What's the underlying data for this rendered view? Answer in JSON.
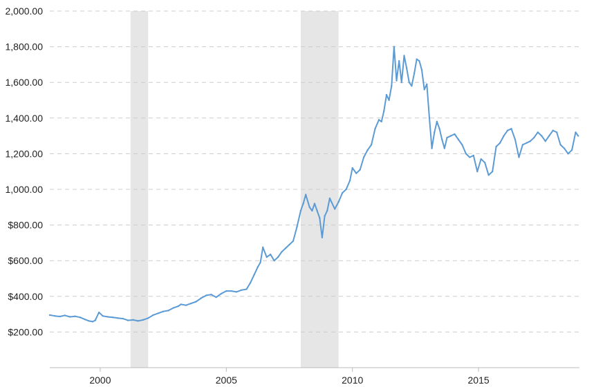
{
  "chart_data": {
    "type": "line",
    "title": "",
    "xlabel": "",
    "ylabel": "",
    "xlim": [
      1998.0,
      2019.0
    ],
    "ylim": [
      0,
      2000
    ],
    "grid": "horizontal dashed",
    "y_ticks": [
      {
        "value": 200,
        "label": "$200.00"
      },
      {
        "value": 400,
        "label": "$400.00"
      },
      {
        "value": 600,
        "label": "$600.00"
      },
      {
        "value": 800,
        "label": "$800.00"
      },
      {
        "value": 1000,
        "label": "1,000.00"
      },
      {
        "value": 1200,
        "label": "1,200.00"
      },
      {
        "value": 1400,
        "label": "1,400.00"
      },
      {
        "value": 1600,
        "label": "1,600.00"
      },
      {
        "value": 1800,
        "label": "1,800.00"
      },
      {
        "value": 2000,
        "label": "2,000.00"
      }
    ],
    "x_ticks": [
      {
        "value": 2000,
        "label": "2000"
      },
      {
        "value": 2005,
        "label": "2005"
      },
      {
        "value": 2010,
        "label": "2010"
      },
      {
        "value": 2015,
        "label": "2015"
      }
    ],
    "shaded_periods": [
      {
        "start": 2001.2,
        "end": 2001.9
      },
      {
        "start": 2007.95,
        "end": 2009.45
      }
    ],
    "line_color": "#5b9bd5",
    "band_color": "#e6e6e6",
    "series": [
      {
        "x": [
          1998.0,
          1998.2,
          1998.4,
          1998.6,
          1998.8,
          1999.0,
          1999.2,
          1999.4,
          1999.55,
          1999.7,
          1999.8,
          1999.95,
          2000.1,
          2000.3,
          2000.5,
          2000.7,
          2000.9,
          2001.1,
          2001.3,
          2001.5,
          2001.7,
          2001.9,
          2002.1,
          2002.3,
          2002.5,
          2002.7,
          2002.9,
          2003.1,
          2003.2,
          2003.4,
          2003.6,
          2003.8,
          2004.0,
          2004.2,
          2004.4,
          2004.6,
          2004.8,
          2005.0,
          2005.2,
          2005.4,
          2005.6,
          2005.8,
          2005.95,
          2006.1,
          2006.25,
          2006.35,
          2006.45,
          2006.6,
          2006.75,
          2006.9,
          2007.05,
          2007.2,
          2007.35,
          2007.5,
          2007.65,
          2007.8,
          2007.95,
          2008.05,
          2008.15,
          2008.3,
          2008.4,
          2008.5,
          2008.6,
          2008.7,
          2008.8,
          2008.9,
          2009.0,
          2009.1,
          2009.3,
          2009.45,
          2009.6,
          2009.75,
          2009.9,
          2010.0,
          2010.15,
          2010.3,
          2010.45,
          2010.6,
          2010.75,
          2010.9,
          2011.05,
          2011.15,
          2011.25,
          2011.35,
          2011.45,
          2011.55,
          2011.65,
          2011.75,
          2011.85,
          2011.95,
          2012.05,
          2012.15,
          2012.25,
          2012.35,
          2012.45,
          2012.55,
          2012.65,
          2012.75,
          2012.85,
          2012.95,
          2013.05,
          2013.15,
          2013.25,
          2013.35,
          2013.45,
          2013.55,
          2013.65,
          2013.75,
          2013.9,
          2014.05,
          2014.2,
          2014.35,
          2014.5,
          2014.65,
          2014.8,
          2014.95,
          2015.1,
          2015.25,
          2015.4,
          2015.55,
          2015.7,
          2015.85,
          2016.0,
          2016.15,
          2016.3,
          2016.45,
          2016.6,
          2016.75,
          2016.9,
          2017.05,
          2017.2,
          2017.35,
          2017.5,
          2017.65,
          2017.8,
          2017.95,
          2018.1,
          2018.25,
          2018.4,
          2018.55,
          2018.7,
          2018.85,
          2018.95
        ],
        "y": [
          295,
          290,
          287,
          293,
          285,
          288,
          282,
          270,
          262,
          258,
          265,
          310,
          290,
          285,
          282,
          278,
          275,
          265,
          268,
          262,
          268,
          278,
          295,
          305,
          315,
          320,
          335,
          345,
          355,
          350,
          360,
          370,
          390,
          405,
          410,
          395,
          415,
          430,
          430,
          425,
          435,
          440,
          475,
          520,
          565,
          590,
          675,
          620,
          635,
          600,
          620,
          650,
          670,
          690,
          710,
          790,
          880,
          920,
          970,
          900,
          880,
          920,
          880,
          840,
          730,
          850,
          880,
          950,
          890,
          930,
          980,
          1000,
          1050,
          1120,
          1090,
          1110,
          1180,
          1220,
          1250,
          1340,
          1390,
          1380,
          1440,
          1530,
          1500,
          1580,
          1800,
          1610,
          1720,
          1600,
          1750,
          1680,
          1600,
          1580,
          1650,
          1730,
          1720,
          1670,
          1560,
          1590,
          1400,
          1230,
          1320,
          1380,
          1340,
          1280,
          1230,
          1290,
          1300,
          1310,
          1280,
          1250,
          1200,
          1180,
          1190,
          1100,
          1170,
          1150,
          1080,
          1100,
          1240,
          1260,
          1300,
          1330,
          1340,
          1280,
          1180,
          1250,
          1260,
          1270,
          1290,
          1320,
          1300,
          1270,
          1300,
          1330,
          1320,
          1250,
          1230,
          1200,
          1220,
          1320,
          1300
        ]
      }
    ]
  }
}
